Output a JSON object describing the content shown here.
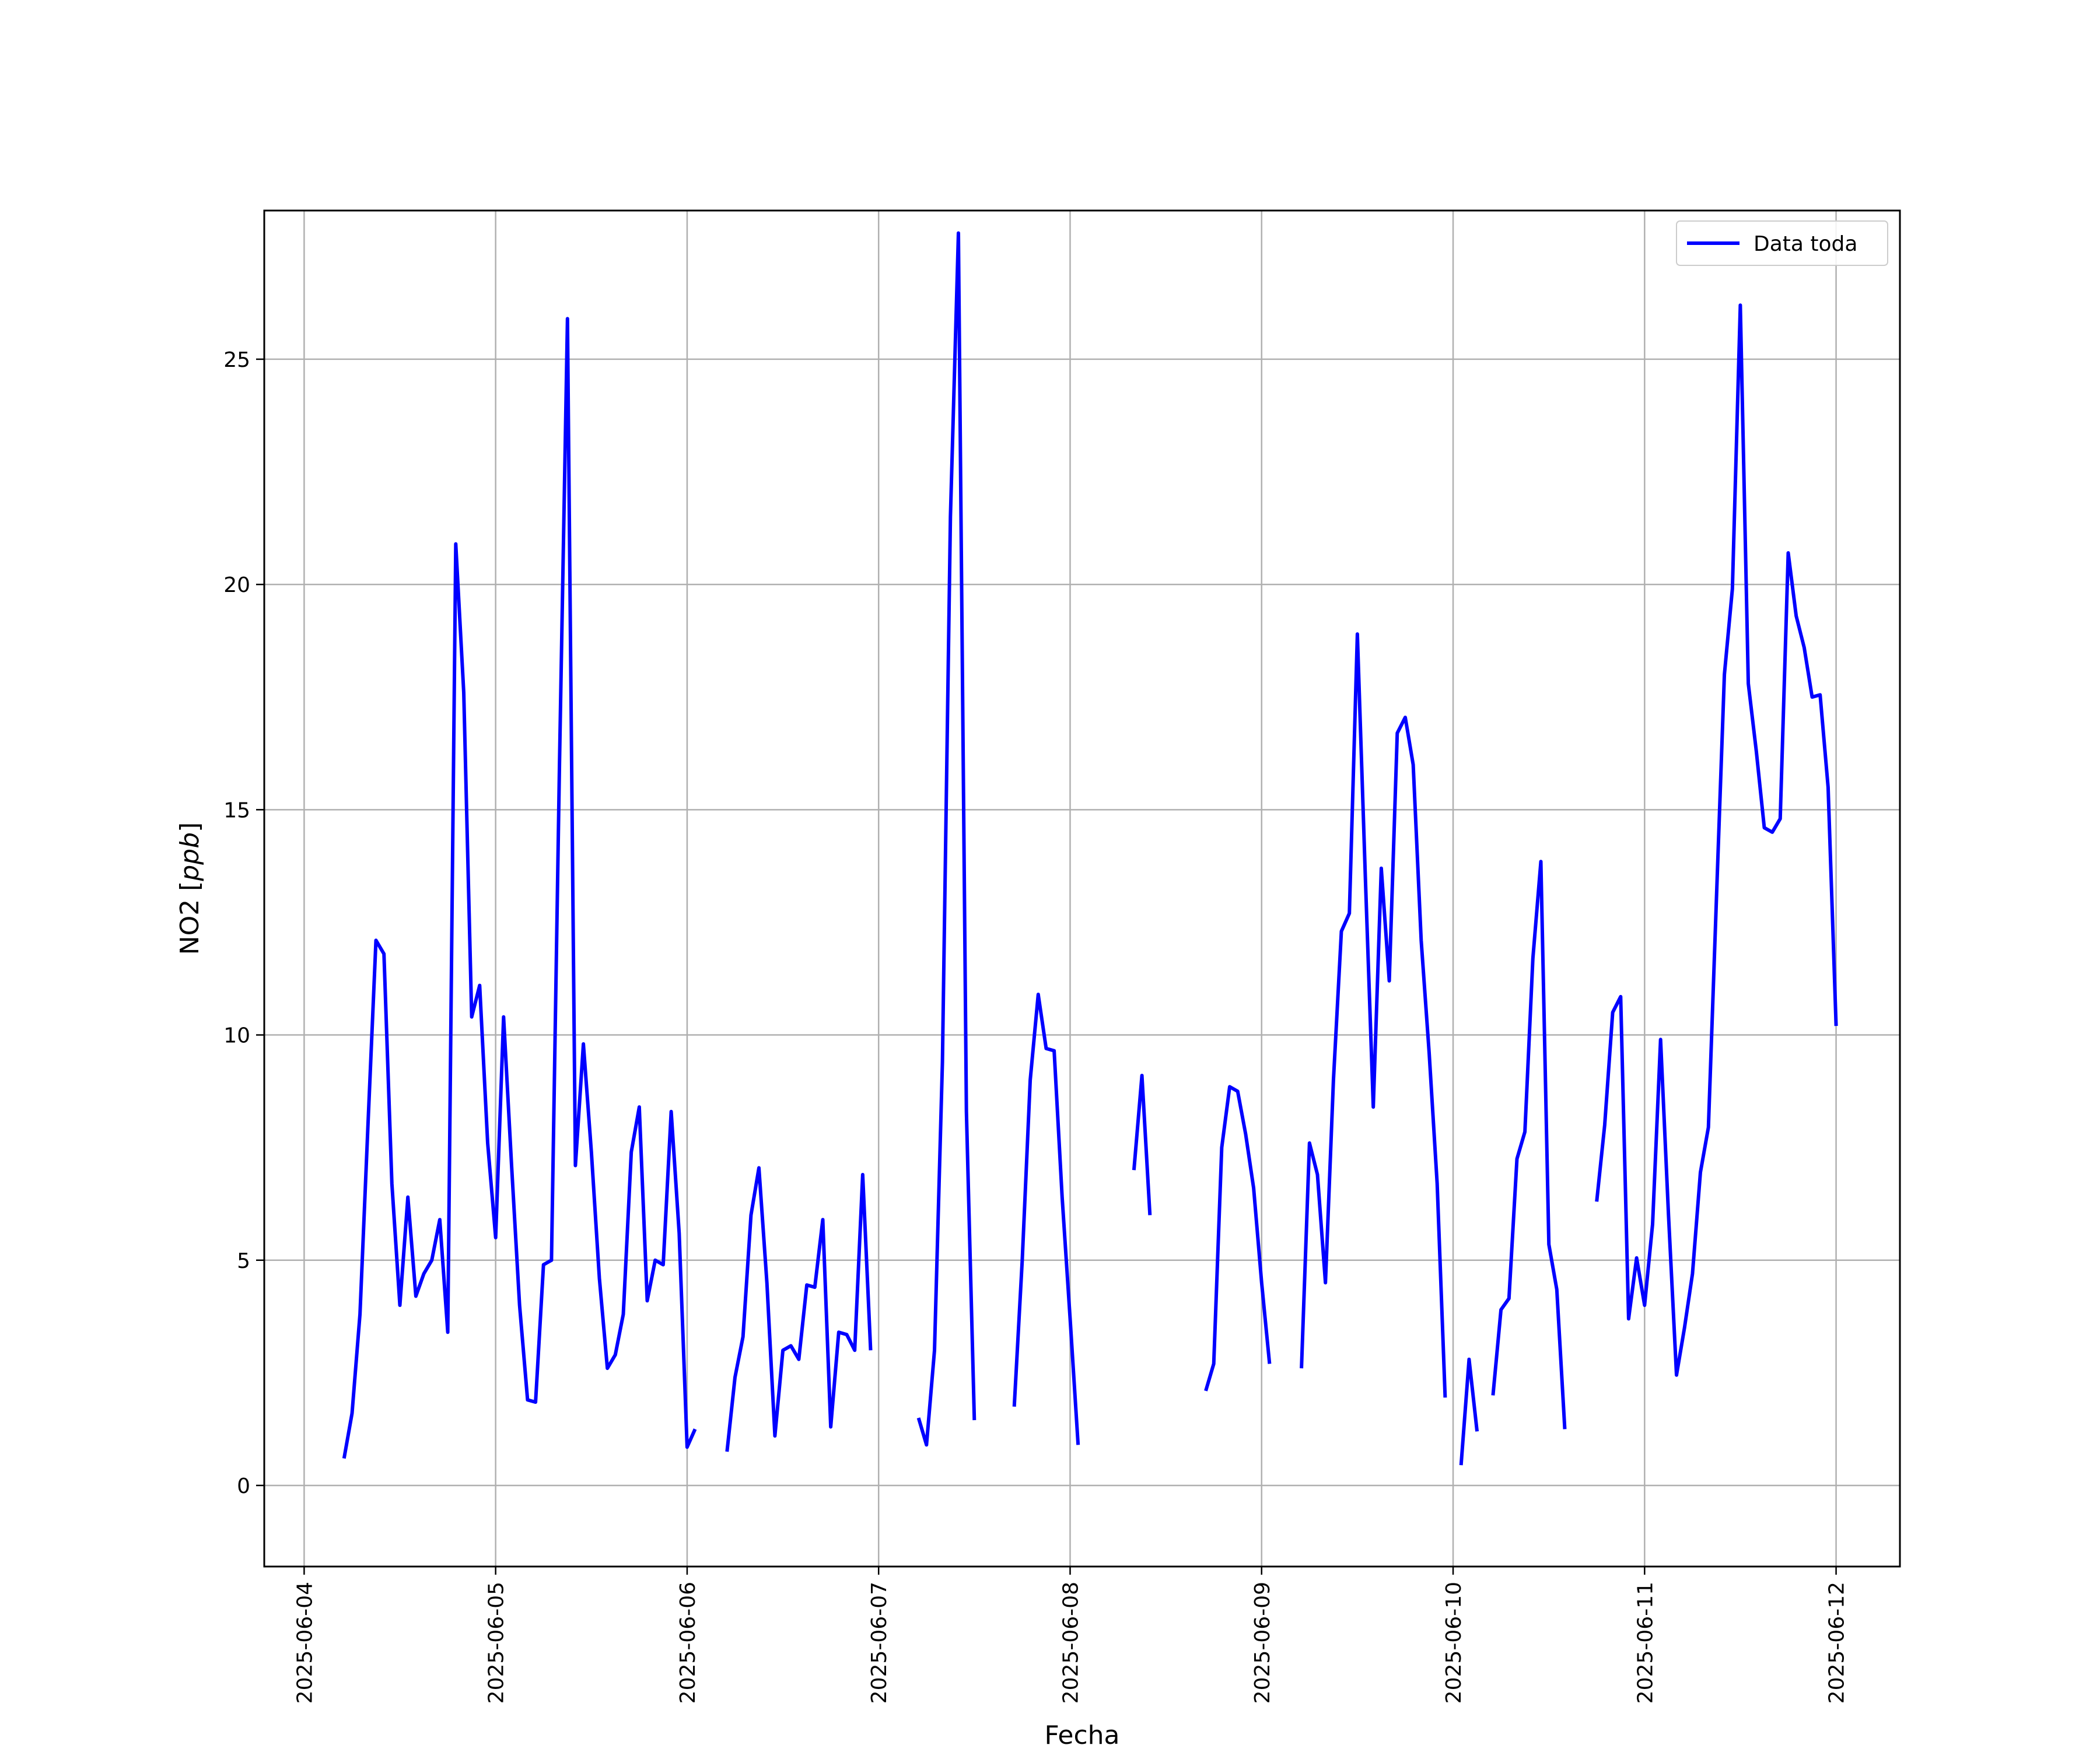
{
  "chart_data": {
    "type": "line",
    "xlabel": "Fecha",
    "ylabel": "NO2 [ppb]",
    "ylabel_unit_italic": "ppb",
    "ylim": [
      -1.8,
      28.3
    ],
    "xlim": [
      "2025-06-03 19:00",
      "2025-06-12 08:00"
    ],
    "x_ticks": [
      "2025-06-04",
      "2025-06-05",
      "2025-06-06",
      "2025-06-07",
      "2025-06-08",
      "2025-06-09",
      "2025-06-10",
      "2025-06-11",
      "2025-06-12"
    ],
    "y_ticks": [
      0,
      5,
      10,
      15,
      20,
      25
    ],
    "grid": true,
    "legend_position": "top-right",
    "series": [
      {
        "name": "Data toda",
        "color": "#0000ff",
        "points": [
          [
            "2025-06-04 05:00",
            0.6
          ],
          [
            "2025-06-04 06:00",
            1.6
          ],
          [
            "2025-06-04 07:00",
            3.8
          ],
          [
            "2025-06-04 08:00",
            8.0
          ],
          [
            "2025-06-04 09:00",
            12.1
          ],
          [
            "2025-06-04 10:00",
            11.8
          ],
          [
            "2025-06-04 11:00",
            6.7
          ],
          [
            "2025-06-04 12:00",
            4.0
          ],
          [
            "2025-06-04 13:00",
            6.4
          ],
          [
            "2025-06-04 14:00",
            4.2
          ],
          [
            "2025-06-04 15:00",
            4.7
          ],
          [
            "2025-06-04 16:00",
            5.0
          ],
          [
            "2025-06-04 17:00",
            5.9
          ],
          [
            "2025-06-04 18:00",
            3.4
          ],
          [
            "2025-06-04 19:00",
            20.9
          ],
          [
            "2025-06-04 20:00",
            17.6
          ],
          [
            "2025-06-04 21:00",
            10.4
          ],
          [
            "2025-06-04 22:00",
            11.1
          ],
          [
            "2025-06-04 23:00",
            7.6
          ],
          [
            "2025-06-05 00:00",
            5.5
          ],
          [
            "2025-06-05 01:00",
            10.4
          ],
          [
            "2025-06-05 02:00",
            7.1
          ],
          [
            "2025-06-05 03:00",
            4.0
          ],
          [
            "2025-06-05 04:00",
            1.9
          ],
          [
            "2025-06-05 05:00",
            1.85
          ],
          [
            "2025-06-05 06:00",
            4.9
          ],
          [
            "2025-06-05 07:00",
            5.0
          ],
          [
            "2025-06-05 08:00",
            16.0
          ],
          [
            "2025-06-05 09:00",
            25.9
          ],
          [
            "2025-06-05 10:00",
            7.1
          ],
          [
            "2025-06-05 11:00",
            9.8
          ],
          [
            "2025-06-05 12:00",
            7.4
          ],
          [
            "2025-06-05 13:00",
            4.6
          ],
          [
            "2025-06-05 14:00",
            2.6
          ],
          [
            "2025-06-05 15:00",
            2.9
          ],
          [
            "2025-06-05 16:00",
            3.8
          ],
          [
            "2025-06-05 17:00",
            7.4
          ],
          [
            "2025-06-05 18:00",
            8.4
          ],
          [
            "2025-06-05 19:00",
            4.1
          ],
          [
            "2025-06-05 20:00",
            5.0
          ],
          [
            "2025-06-05 21:00",
            4.9
          ],
          [
            "2025-06-05 22:00",
            8.3
          ],
          [
            "2025-06-05 23:00",
            5.6
          ],
          [
            "2025-06-06 00:00",
            0.85
          ],
          [
            "2025-06-06 01:00",
            1.25
          ],
          [
            "2025-06-06 02:00",
            null
          ],
          [
            "2025-06-06 05:00",
            0.75
          ],
          [
            "2025-06-06 06:00",
            2.4
          ],
          [
            "2025-06-06 07:00",
            3.3
          ],
          [
            "2025-06-06 08:00",
            6.0
          ],
          [
            "2025-06-06 09:00",
            7.05
          ],
          [
            "2025-06-06 10:00",
            4.5
          ],
          [
            "2025-06-06 11:00",
            1.1
          ],
          [
            "2025-06-06 12:00",
            3.0
          ],
          [
            "2025-06-06 13:00",
            3.1
          ],
          [
            "2025-06-06 14:00",
            2.8
          ],
          [
            "2025-06-06 15:00",
            4.45
          ],
          [
            "2025-06-06 16:00",
            4.4
          ],
          [
            "2025-06-06 17:00",
            5.9
          ],
          [
            "2025-06-06 18:00",
            1.3
          ],
          [
            "2025-06-06 19:00",
            3.4
          ],
          [
            "2025-06-06 20:00",
            3.35
          ],
          [
            "2025-06-06 21:00",
            3.0
          ],
          [
            "2025-06-06 22:00",
            6.9
          ],
          [
            "2025-06-06 23:00",
            3.0
          ],
          [
            "2025-06-07 00:00",
            null
          ],
          [
            "2025-06-07 05:00",
            1.5
          ],
          [
            "2025-06-07 06:00",
            0.9
          ],
          [
            "2025-06-07 07:00",
            3.0
          ],
          [
            "2025-06-07 08:00",
            9.4
          ],
          [
            "2025-06-07 09:00",
            21.5
          ],
          [
            "2025-06-07 10:00",
            27.8
          ],
          [
            "2025-06-07 11:00",
            8.3
          ],
          [
            "2025-06-07 12:00",
            1.45
          ],
          [
            "2025-06-07 13:00",
            null
          ],
          [
            "2025-06-07 17:00",
            1.75
          ],
          [
            "2025-06-07 18:00",
            5.0
          ],
          [
            "2025-06-07 19:00",
            9.0
          ],
          [
            "2025-06-07 20:00",
            10.9
          ],
          [
            "2025-06-07 21:00",
            9.7
          ],
          [
            "2025-06-07 22:00",
            9.65
          ],
          [
            "2025-06-07 23:00",
            6.4
          ],
          [
            "2025-06-08 00:00",
            3.7
          ],
          [
            "2025-06-08 01:00",
            0.9
          ],
          [
            "2025-06-08 02:00",
            null
          ],
          [
            "2025-06-08 08:00",
            7.0
          ],
          [
            "2025-06-08 09:00",
            9.1
          ],
          [
            "2025-06-08 10:00",
            6.0
          ],
          [
            "2025-06-08 11:00",
            null
          ],
          [
            "2025-06-08 17:00",
            2.1
          ],
          [
            "2025-06-08 18:00",
            2.7
          ],
          [
            "2025-06-08 19:00",
            7.5
          ],
          [
            "2025-06-08 20:00",
            8.85
          ],
          [
            "2025-06-08 21:00",
            8.75
          ],
          [
            "2025-06-08 22:00",
            7.8
          ],
          [
            "2025-06-08 23:00",
            6.6
          ],
          [
            "2025-06-09 00:00",
            4.5
          ],
          [
            "2025-06-09 01:00",
            2.7
          ],
          [
            "2025-06-09 02:00",
            null
          ],
          [
            "2025-06-09 05:00",
            2.6
          ],
          [
            "2025-06-09 06:00",
            7.6
          ],
          [
            "2025-06-09 07:00",
            6.9
          ],
          [
            "2025-06-09 08:00",
            4.5
          ],
          [
            "2025-06-09 09:00",
            9.0
          ],
          [
            "2025-06-09 10:00",
            12.3
          ],
          [
            "2025-06-09 11:00",
            12.7
          ],
          [
            "2025-06-09 12:00",
            18.9
          ],
          [
            "2025-06-09 13:00",
            13.5
          ],
          [
            "2025-06-09 14:00",
            8.4
          ],
          [
            "2025-06-09 15:00",
            13.7
          ],
          [
            "2025-06-09 16:00",
            11.2
          ],
          [
            "2025-06-09 17:00",
            16.7
          ],
          [
            "2025-06-09 18:00",
            17.05
          ],
          [
            "2025-06-09 19:00",
            16.0
          ],
          [
            "2025-06-09 20:00",
            12.1
          ],
          [
            "2025-06-09 21:00",
            9.6
          ],
          [
            "2025-06-09 22:00",
            6.7
          ],
          [
            "2025-06-09 23:00",
            1.95
          ],
          [
            "2025-06-10 00:00",
            null
          ],
          [
            "2025-06-10 01:00",
            0.45
          ],
          [
            "2025-06-10 02:00",
            2.8
          ],
          [
            "2025-06-10 03:00",
            1.2
          ],
          [
            "2025-06-10 04:00",
            null
          ],
          [
            "2025-06-10 05:00",
            2.0
          ],
          [
            "2025-06-10 06:00",
            3.9
          ],
          [
            "2025-06-10 07:00",
            4.15
          ],
          [
            "2025-06-10 08:00",
            7.25
          ],
          [
            "2025-06-10 09:00",
            7.85
          ],
          [
            "2025-06-10 10:00",
            11.7
          ],
          [
            "2025-06-10 11:00",
            13.85
          ],
          [
            "2025-06-10 12:00",
            5.35
          ],
          [
            "2025-06-10 13:00",
            4.35
          ],
          [
            "2025-06-10 14:00",
            1.25
          ],
          [
            "2025-06-10 15:00",
            null
          ],
          [
            "2025-06-10 18:00",
            6.3
          ],
          [
            "2025-06-10 19:00",
            8.0
          ],
          [
            "2025-06-10 20:00",
            10.5
          ],
          [
            "2025-06-10 21:00",
            10.85
          ],
          [
            "2025-06-10 22:00",
            3.7
          ],
          [
            "2025-06-10 23:00",
            5.05
          ],
          [
            "2025-06-11 00:00",
            4.0
          ],
          [
            "2025-06-11 01:00",
            5.8
          ],
          [
            "2025-06-11 02:00",
            9.9
          ],
          [
            "2025-06-11 03:00",
            6.0
          ],
          [
            "2025-06-11 04:00",
            2.45
          ],
          [
            "2025-06-11 05:00",
            3.5
          ],
          [
            "2025-06-11 06:00",
            4.7
          ],
          [
            "2025-06-11 07:00",
            6.95
          ],
          [
            "2025-06-11 08:00",
            7.95
          ],
          [
            "2025-06-11 09:00",
            13.0
          ],
          [
            "2025-06-11 10:00",
            18.0
          ],
          [
            "2025-06-11 11:00",
            19.9
          ],
          [
            "2025-06-11 12:00",
            26.2
          ],
          [
            "2025-06-11 13:00",
            17.8
          ],
          [
            "2025-06-11 14:00",
            16.3
          ],
          [
            "2025-06-11 15:00",
            14.6
          ],
          [
            "2025-06-11 16:00",
            14.5
          ],
          [
            "2025-06-11 17:00",
            14.8
          ],
          [
            "2025-06-11 18:00",
            20.7
          ],
          [
            "2025-06-11 19:00",
            19.3
          ],
          [
            "2025-06-11 20:00",
            18.6
          ],
          [
            "2025-06-11 21:00",
            17.5
          ],
          [
            "2025-06-11 22:00",
            17.55
          ],
          [
            "2025-06-11 23:00",
            15.5
          ],
          [
            "2025-06-12 00:00",
            10.2
          ]
        ]
      }
    ]
  }
}
